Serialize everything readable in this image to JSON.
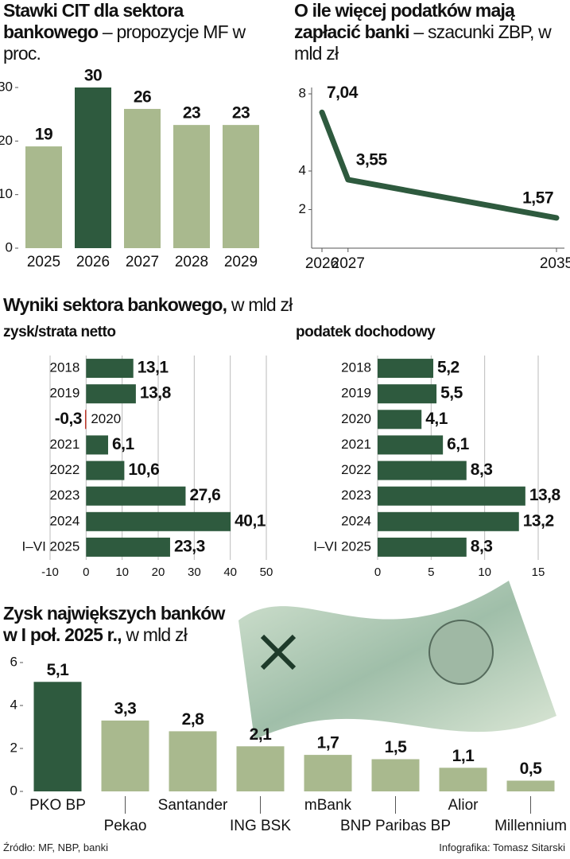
{
  "chart_data": [
    {
      "type": "bar",
      "title": "Stawki CIT dla sektora bankowego",
      "subtitle": "– propozycje MF w proc.",
      "categories": [
        "2025",
        "2026",
        "2027",
        "2028",
        "2029"
      ],
      "values": [
        19,
        30,
        26,
        23,
        23
      ],
      "colors": [
        "#a9b98e",
        "#2e5a3e",
        "#a9b98e",
        "#a9b98e",
        "#a9b98e"
      ],
      "ylim": [
        0,
        30
      ],
      "yticks": [
        0,
        10,
        20,
        30
      ]
    },
    {
      "type": "line",
      "title": "O ile więcej podatków mają zapłacić banki",
      "subtitle": "– szacunki ZBP, w mld zł",
      "x": [
        2026,
        2027,
        2035
      ],
      "values": [
        7.04,
        3.55,
        1.57
      ],
      "value_labels": [
        "7,04",
        "3,55",
        "1,57"
      ],
      "color": "#2e5a3e",
      "xlim": [
        2026,
        2035
      ],
      "xticks": [
        2026,
        2027,
        2035
      ],
      "ylim": [
        0,
        8
      ],
      "yticks": [
        2,
        4,
        8
      ]
    },
    {
      "type": "hbar",
      "title": "zysk/strata netto",
      "categories": [
        "2018",
        "2019",
        "2020",
        "2021",
        "2022",
        "2023",
        "2024",
        "I–VI 2025"
      ],
      "values": [
        13.1,
        13.8,
        -0.3,
        6.1,
        10.6,
        27.6,
        40.1,
        23.3
      ],
      "value_labels": [
        "13,1",
        "13,8",
        "-0,3",
        "6,1",
        "10,6",
        "27,6",
        "40,1",
        "23,3"
      ],
      "colors": [
        "#2e5a3e",
        "#2e5a3e",
        "#c0392b",
        "#2e5a3e",
        "#2e5a3e",
        "#2e5a3e",
        "#2e5a3e",
        "#2e5a3e"
      ],
      "xlim": [
        -10,
        50
      ],
      "xticks": [
        -10,
        0,
        10,
        20,
        30,
        40,
        50
      ],
      "grid": true
    },
    {
      "type": "hbar",
      "title": "podatek dochodowy",
      "categories": [
        "2018",
        "2019",
        "2020",
        "2021",
        "2022",
        "2023",
        "2024",
        "I–VI 2025"
      ],
      "values": [
        5.2,
        5.5,
        4.1,
        6.1,
        8.3,
        13.8,
        13.2,
        8.3
      ],
      "value_labels": [
        "5,2",
        "5,5",
        "4,1",
        "6,1",
        "8,3",
        "13,8",
        "13,2",
        "8,3"
      ],
      "color": "#2e5a3e",
      "xlim": [
        0,
        15
      ],
      "xticks": [
        0,
        5,
        10,
        15
      ],
      "grid": true
    },
    {
      "type": "bar",
      "title": "Zysk największych banków w I poł. 2025 r.,",
      "subtitle": "w mld zł",
      "categories": [
        "PKO BP",
        "Pekao",
        "Santander",
        "ING BSK",
        "mBank",
        "BNP Paribas BP",
        "Alior",
        "Millennium"
      ],
      "values": [
        5.1,
        3.3,
        2.8,
        2.1,
        1.7,
        1.5,
        1.1,
        0.5
      ],
      "value_labels": [
        "5,1",
        "3,3",
        "2,8",
        "2,1",
        "1,7",
        "1,5",
        "1,1",
        "0,5"
      ],
      "colors": [
        "#2e5a3e",
        "#a9b98e",
        "#a9b98e",
        "#a9b98e",
        "#a9b98e",
        "#a9b98e",
        "#a9b98e",
        "#a9b98e"
      ],
      "ylim": [
        0,
        6
      ],
      "yticks": [
        0,
        2,
        4,
        6
      ]
    }
  ],
  "section": {
    "title": "Wyniki sektora bankowego,",
    "subtitle": "w mld zł"
  },
  "footer": {
    "source": "Źródło: MF, NBP, banki",
    "credit": "Infografika: Tomasz Sitarski"
  }
}
